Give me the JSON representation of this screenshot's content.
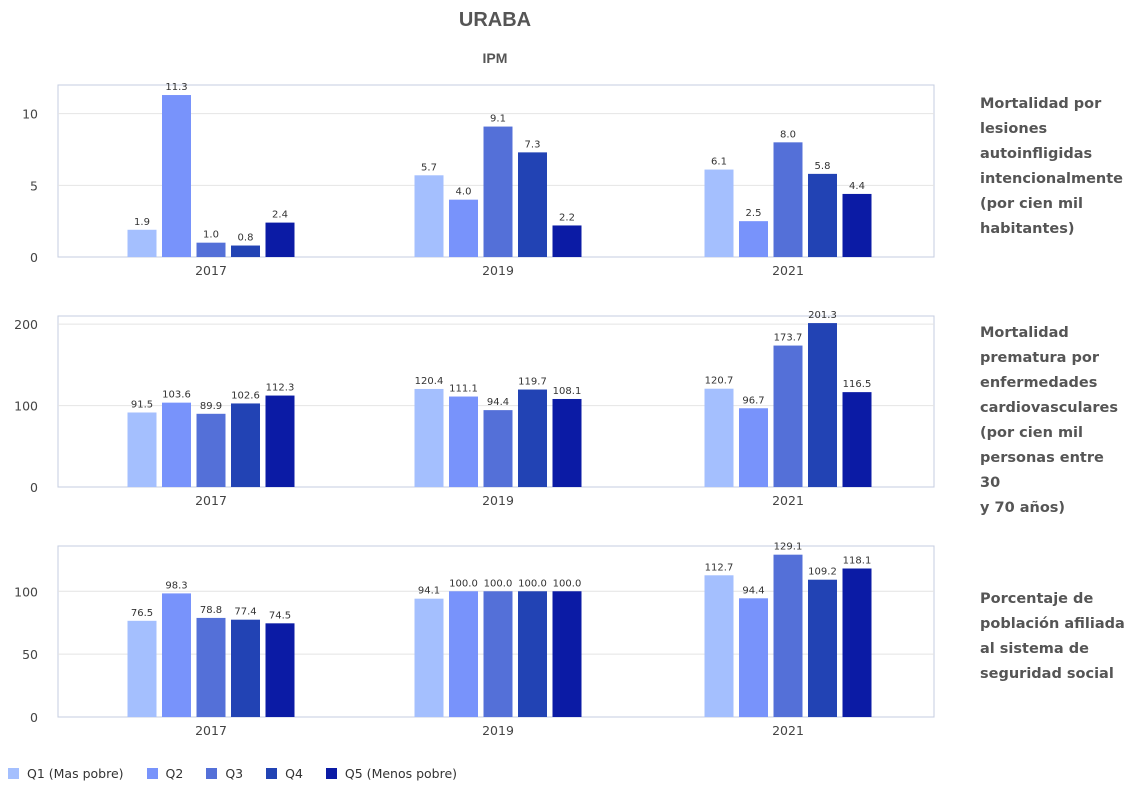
{
  "title": "URABA",
  "subtitle": "IPM",
  "colors": {
    "series": [
      "#a4bffe",
      "#7893fb",
      "#5470d8",
      "#2243b4",
      "#0b1ba5"
    ],
    "grid": "#e4e4e4",
    "border": "#c5cde0",
    "text": "#555555"
  },
  "chart_data": [
    {
      "type": "bar",
      "categories": [
        "2017",
        "2019",
        "2021"
      ],
      "ylim": [
        0,
        12
      ],
      "yticks": [
        0,
        5,
        10
      ],
      "grid": true,
      "side_label": "Mortalidad por lesiones autoinfligidas intencionalmente (por cien mil habitantes)",
      "side_label_lines": [
        "Mortalidad por",
        "lesiones",
        "autoinfligidas",
        "intencionalmente",
        "(por cien mil",
        "habitantes)"
      ],
      "series": [
        {
          "name": "Q1 (Mas pobre)",
          "values": [
            1.9,
            5.7,
            6.1
          ],
          "labels": [
            "1.9",
            "5.7",
            "6.1"
          ]
        },
        {
          "name": "Q2",
          "values": [
            11.3,
            4.0,
            2.5
          ],
          "labels": [
            "11.3",
            "4.0",
            "2.5"
          ]
        },
        {
          "name": "Q3",
          "values": [
            1.0,
            9.1,
            8.0
          ],
          "labels": [
            "1.0",
            "9.1",
            "8.0"
          ]
        },
        {
          "name": "Q4",
          "values": [
            0.8,
            7.3,
            5.8
          ],
          "labels": [
            "0.8",
            "7.3",
            "5.8"
          ]
        },
        {
          "name": "Q5 (Menos pobre)",
          "values": [
            2.4,
            2.2,
            4.4
          ],
          "labels": [
            "2.4",
            "2.2",
            "4.4"
          ]
        }
      ]
    },
    {
      "type": "bar",
      "categories": [
        "2017",
        "2019",
        "2021"
      ],
      "ylim": [
        0,
        210
      ],
      "yticks": [
        0,
        100,
        200
      ],
      "grid": true,
      "side_label": "Mortalidad prematura por enfermedades cardiovasculares (por cien mil personas entre 30 y 70 años)",
      "side_label_lines": [
        "Mortalidad",
        "prematura por",
        "enfermedades",
        "cardiovasculares",
        "(por cien mil",
        "personas entre 30",
        "y 70 años)"
      ],
      "series": [
        {
          "name": "Q1 (Mas pobre)",
          "values": [
            91.5,
            120.4,
            120.7
          ],
          "labels": [
            "91.5",
            "120.4",
            "120.7"
          ]
        },
        {
          "name": "Q2",
          "values": [
            103.6,
            111.1,
            96.7
          ],
          "labels": [
            "103.6",
            "111.1",
            "96.7"
          ]
        },
        {
          "name": "Q3",
          "values": [
            89.9,
            94.4,
            173.7
          ],
          "labels": [
            "89.9",
            "94.4",
            "173.7"
          ]
        },
        {
          "name": "Q4",
          "values": [
            102.6,
            119.7,
            201.3
          ],
          "labels": [
            "102.6",
            "119.7",
            "201.3"
          ]
        },
        {
          "name": "Q5 (Menos pobre)",
          "values": [
            112.3,
            108.1,
            116.5
          ],
          "labels": [
            "112.3",
            "108.1",
            "116.5"
          ]
        }
      ]
    },
    {
      "type": "bar",
      "categories": [
        "2017",
        "2019",
        "2021"
      ],
      "ylim": [
        0,
        136
      ],
      "yticks": [
        0,
        50,
        100
      ],
      "grid": true,
      "side_label": "Porcentaje de población afiliada al sistema de seguridad social",
      "side_label_lines": [
        "Porcentaje de",
        "población afiliada",
        "al sistema de",
        "seguridad social"
      ],
      "series": [
        {
          "name": "Q1 (Mas pobre)",
          "values": [
            76.5,
            94.1,
            112.7
          ],
          "labels": [
            "76.5",
            "94.1",
            "112.7"
          ]
        },
        {
          "name": "Q2",
          "values": [
            98.3,
            100.0,
            94.4
          ],
          "labels": [
            "98.3",
            "100.0",
            "94.4"
          ]
        },
        {
          "name": "Q3",
          "values": [
            78.8,
            100.0,
            129.1
          ],
          "labels": [
            "78.8",
            "100.0",
            "129.1"
          ]
        },
        {
          "name": "Q4",
          "values": [
            77.4,
            100.0,
            109.2
          ],
          "labels": [
            "77.4",
            "100.0",
            "109.2"
          ]
        },
        {
          "name": "Q5 (Menos pobre)",
          "values": [
            74.5,
            100.0,
            118.1
          ],
          "labels": [
            "74.5",
            "100.0",
            "118.1"
          ]
        }
      ]
    }
  ],
  "legend": [
    {
      "label": "Q1 (Mas pobre)"
    },
    {
      "label": "Q2"
    },
    {
      "label": "Q3"
    },
    {
      "label": "Q4"
    },
    {
      "label": "Q5 (Menos pobre)"
    }
  ]
}
